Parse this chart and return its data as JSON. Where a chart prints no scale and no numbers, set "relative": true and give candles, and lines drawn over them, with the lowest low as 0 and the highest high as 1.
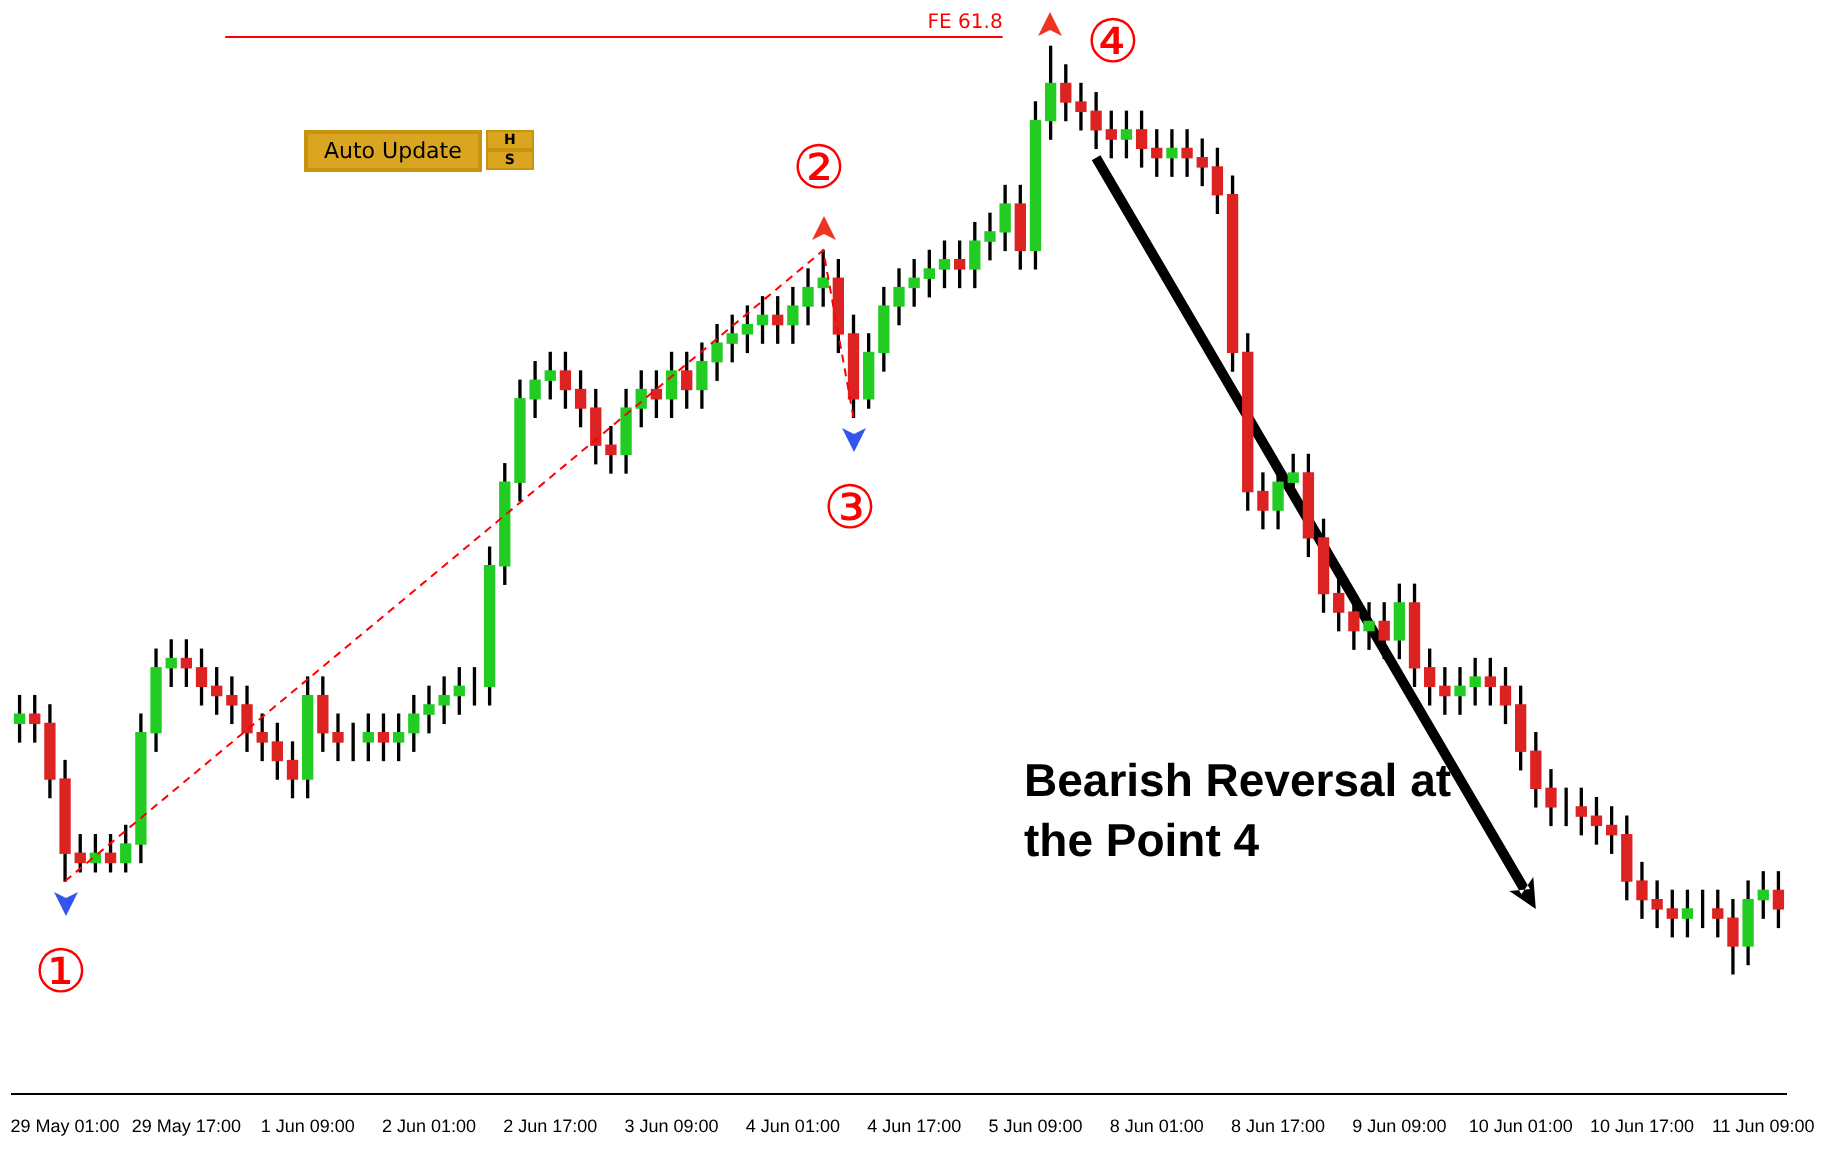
{
  "chart_data": {
    "type": "candlestick",
    "relative": true,
    "legend": false,
    "grid": false,
    "categories": [
      null,
      null,
      null,
      "29 May 01:00",
      null,
      null,
      null,
      null,
      null,
      null,
      null,
      "29 May 17:00",
      null,
      null,
      null,
      null,
      null,
      null,
      null,
      "1 Jun 09:00",
      null,
      null,
      null,
      null,
      null,
      null,
      null,
      "2 Jun 01:00",
      null,
      null,
      null,
      null,
      null,
      null,
      null,
      "2 Jun 17:00",
      null,
      null,
      null,
      null,
      null,
      null,
      null,
      "3 Jun 09:00",
      null,
      null,
      null,
      null,
      null,
      null,
      null,
      "4 Jun 01:00",
      null,
      null,
      null,
      null,
      null,
      null,
      null,
      "4 Jun 17:00",
      null,
      null,
      null,
      null,
      null,
      null,
      null,
      "5 Jun 09:00",
      null,
      null,
      null,
      null,
      null,
      null,
      null,
      "8 Jun 01:00",
      null,
      null,
      null,
      null,
      null,
      null,
      null,
      "8 Jun 17:00",
      null,
      null,
      null,
      null,
      null,
      null,
      null,
      "9 Jun 09:00",
      null,
      null,
      null,
      null,
      null,
      null,
      null,
      "10 Jun 01:00",
      null,
      null,
      null,
      null,
      null,
      null,
      null,
      "10 Jun 17:00",
      null,
      null,
      null,
      null,
      null,
      null,
      null,
      "11 Jun 09:00",
      null
    ],
    "ohlc": [
      [
        0.27,
        0.3,
        0.25,
        0.28
      ],
      [
        0.28,
        0.3,
        0.25,
        0.27
      ],
      [
        0.27,
        0.29,
        0.19,
        0.21
      ],
      [
        0.21,
        0.23,
        0.1,
        0.13
      ],
      [
        0.13,
        0.15,
        0.11,
        0.12
      ],
      [
        0.12,
        0.15,
        0.11,
        0.13
      ],
      [
        0.13,
        0.15,
        0.11,
        0.12
      ],
      [
        0.12,
        0.16,
        0.11,
        0.14
      ],
      [
        0.14,
        0.28,
        0.12,
        0.26
      ],
      [
        0.26,
        0.35,
        0.24,
        0.33
      ],
      [
        0.33,
        0.36,
        0.31,
        0.34
      ],
      [
        0.34,
        0.36,
        0.31,
        0.33
      ],
      [
        0.33,
        0.35,
        0.29,
        0.31
      ],
      [
        0.31,
        0.33,
        0.28,
        0.3
      ],
      [
        0.3,
        0.32,
        0.27,
        0.29
      ],
      [
        0.29,
        0.31,
        0.24,
        0.26
      ],
      [
        0.26,
        0.28,
        0.23,
        0.25
      ],
      [
        0.25,
        0.27,
        0.21,
        0.23
      ],
      [
        0.23,
        0.25,
        0.19,
        0.21
      ],
      [
        0.21,
        0.32,
        0.19,
        0.3
      ],
      [
        0.3,
        0.32,
        0.24,
        0.26
      ],
      [
        0.26,
        0.28,
        0.23,
        0.25
      ],
      [
        0.25,
        0.27,
        0.23,
        0.25
      ],
      [
        0.25,
        0.28,
        0.23,
        0.26
      ],
      [
        0.26,
        0.28,
        0.23,
        0.25
      ],
      [
        0.25,
        0.28,
        0.23,
        0.26
      ],
      [
        0.26,
        0.3,
        0.24,
        0.28
      ],
      [
        0.28,
        0.31,
        0.26,
        0.29
      ],
      [
        0.29,
        0.32,
        0.27,
        0.3
      ],
      [
        0.3,
        0.33,
        0.28,
        0.31
      ],
      [
        0.31,
        0.33,
        0.29,
        0.31
      ],
      [
        0.31,
        0.46,
        0.29,
        0.44
      ],
      [
        0.44,
        0.55,
        0.42,
        0.53
      ],
      [
        0.53,
        0.64,
        0.51,
        0.62
      ],
      [
        0.62,
        0.66,
        0.6,
        0.64
      ],
      [
        0.64,
        0.67,
        0.62,
        0.65
      ],
      [
        0.65,
        0.67,
        0.61,
        0.63
      ],
      [
        0.63,
        0.65,
        0.59,
        0.61
      ],
      [
        0.61,
        0.63,
        0.55,
        0.57
      ],
      [
        0.57,
        0.59,
        0.54,
        0.56
      ],
      [
        0.56,
        0.63,
        0.54,
        0.61
      ],
      [
        0.61,
        0.65,
        0.59,
        0.63
      ],
      [
        0.63,
        0.65,
        0.6,
        0.62
      ],
      [
        0.62,
        0.67,
        0.6,
        0.65
      ],
      [
        0.65,
        0.67,
        0.61,
        0.63
      ],
      [
        0.63,
        0.68,
        0.61,
        0.66
      ],
      [
        0.66,
        0.7,
        0.64,
        0.68
      ],
      [
        0.68,
        0.71,
        0.66,
        0.69
      ],
      [
        0.69,
        0.72,
        0.67,
        0.7
      ],
      [
        0.7,
        0.73,
        0.68,
        0.71
      ],
      [
        0.71,
        0.73,
        0.68,
        0.7
      ],
      [
        0.7,
        0.74,
        0.68,
        0.72
      ],
      [
        0.72,
        0.76,
        0.7,
        0.74
      ],
      [
        0.74,
        0.78,
        0.72,
        0.75
      ],
      [
        0.75,
        0.77,
        0.67,
        0.69
      ],
      [
        0.69,
        0.71,
        0.6,
        0.62
      ],
      [
        0.62,
        0.69,
        0.61,
        0.67
      ],
      [
        0.67,
        0.74,
        0.65,
        0.72
      ],
      [
        0.72,
        0.76,
        0.7,
        0.74
      ],
      [
        0.74,
        0.77,
        0.72,
        0.75
      ],
      [
        0.75,
        0.78,
        0.73,
        0.76
      ],
      [
        0.76,
        0.79,
        0.74,
        0.77
      ],
      [
        0.77,
        0.79,
        0.74,
        0.76
      ],
      [
        0.76,
        0.81,
        0.74,
        0.79
      ],
      [
        0.79,
        0.82,
        0.77,
        0.8
      ],
      [
        0.8,
        0.85,
        0.78,
        0.83
      ],
      [
        0.83,
        0.85,
        0.76,
        0.78
      ],
      [
        0.78,
        0.94,
        0.76,
        0.92
      ],
      [
        0.92,
        1.0,
        0.9,
        0.96
      ],
      [
        0.96,
        0.98,
        0.92,
        0.94
      ],
      [
        0.94,
        0.96,
        0.91,
        0.93
      ],
      [
        0.93,
        0.95,
        0.89,
        0.91
      ],
      [
        0.91,
        0.93,
        0.88,
        0.9
      ],
      [
        0.9,
        0.93,
        0.88,
        0.91
      ],
      [
        0.91,
        0.93,
        0.87,
        0.89
      ],
      [
        0.89,
        0.91,
        0.86,
        0.88
      ],
      [
        0.88,
        0.91,
        0.86,
        0.89
      ],
      [
        0.89,
        0.91,
        0.86,
        0.88
      ],
      [
        0.88,
        0.9,
        0.85,
        0.87
      ],
      [
        0.87,
        0.89,
        0.82,
        0.84
      ],
      [
        0.84,
        0.86,
        0.65,
        0.67
      ],
      [
        0.67,
        0.69,
        0.5,
        0.52
      ],
      [
        0.52,
        0.54,
        0.48,
        0.5
      ],
      [
        0.5,
        0.55,
        0.48,
        0.53
      ],
      [
        0.53,
        0.56,
        0.51,
        0.54
      ],
      [
        0.54,
        0.56,
        0.45,
        0.47
      ],
      [
        0.47,
        0.49,
        0.39,
        0.41
      ],
      [
        0.41,
        0.43,
        0.37,
        0.39
      ],
      [
        0.39,
        0.41,
        0.35,
        0.37
      ],
      [
        0.37,
        0.4,
        0.35,
        0.38
      ],
      [
        0.38,
        0.4,
        0.34,
        0.36
      ],
      [
        0.36,
        0.42,
        0.34,
        0.4
      ],
      [
        0.4,
        0.42,
        0.31,
        0.33
      ],
      [
        0.33,
        0.35,
        0.29,
        0.31
      ],
      [
        0.31,
        0.33,
        0.28,
        0.3
      ],
      [
        0.3,
        0.33,
        0.28,
        0.31
      ],
      [
        0.31,
        0.34,
        0.29,
        0.32
      ],
      [
        0.32,
        0.34,
        0.29,
        0.31
      ],
      [
        0.31,
        0.33,
        0.27,
        0.29
      ],
      [
        0.29,
        0.31,
        0.22,
        0.24
      ],
      [
        0.24,
        0.26,
        0.18,
        0.2
      ],
      [
        0.2,
        0.22,
        0.16,
        0.18
      ],
      [
        0.18,
        0.2,
        0.16,
        0.18
      ],
      [
        0.18,
        0.2,
        0.15,
        0.17
      ],
      [
        0.17,
        0.19,
        0.14,
        0.16
      ],
      [
        0.16,
        0.18,
        0.13,
        0.15
      ],
      [
        0.15,
        0.17,
        0.08,
        0.1
      ],
      [
        0.1,
        0.12,
        0.06,
        0.08
      ],
      [
        0.08,
        0.1,
        0.05,
        0.07
      ],
      [
        0.07,
        0.09,
        0.04,
        0.06
      ],
      [
        0.06,
        0.09,
        0.04,
        0.07
      ],
      [
        0.07,
        0.09,
        0.05,
        0.07
      ],
      [
        0.07,
        0.09,
        0.04,
        0.06
      ],
      [
        0.06,
        0.08,
        0.0,
        0.03
      ],
      [
        0.03,
        0.1,
        0.01,
        0.08
      ],
      [
        0.08,
        0.11,
        0.06,
        0.09
      ],
      [
        0.09,
        0.11,
        0.05,
        0.07
      ]
    ],
    "series": [
      {
        "type": "line",
        "color": "#ff0000",
        "line_style": "dashed",
        "values": [
          null,
          null,
          null,
          0.1,
          null,
          null,
          null,
          null,
          null,
          null,
          null,
          null,
          null,
          null,
          null,
          null,
          null,
          null,
          null,
          null,
          null,
          null,
          null,
          null,
          null,
          null,
          null,
          null,
          null,
          null,
          null,
          null,
          null,
          null,
          null,
          null,
          null,
          null,
          null,
          null,
          null,
          null,
          null,
          null,
          null,
          null,
          null,
          null,
          null,
          null,
          null,
          null,
          null,
          0.78,
          null,
          0.6,
          null,
          null,
          null,
          null,
          null,
          null,
          null,
          null,
          null,
          null,
          null,
          null,
          null,
          null,
          null,
          null,
          null,
          null,
          null,
          null,
          null,
          null,
          null,
          null,
          null,
          null,
          null,
          null,
          null,
          null,
          null,
          null,
          null,
          null,
          null,
          null,
          null,
          null,
          null,
          null,
          null,
          null,
          null,
          null,
          null,
          null,
          null,
          null,
          null,
          null,
          null,
          null,
          null,
          null,
          null,
          null,
          null,
          null,
          null,
          null,
          null
        ]
      }
    ],
    "ref_lines": [
      {
        "axis": "y",
        "value": 1.01,
        "label": "FE 61.8",
        "color": "#ff0000"
      }
    ],
    "annotations": [
      "①",
      "②",
      "③",
      "④",
      "Bearish Reversal at the Point 4",
      "Auto Update",
      "H",
      "S"
    ]
  }
}
